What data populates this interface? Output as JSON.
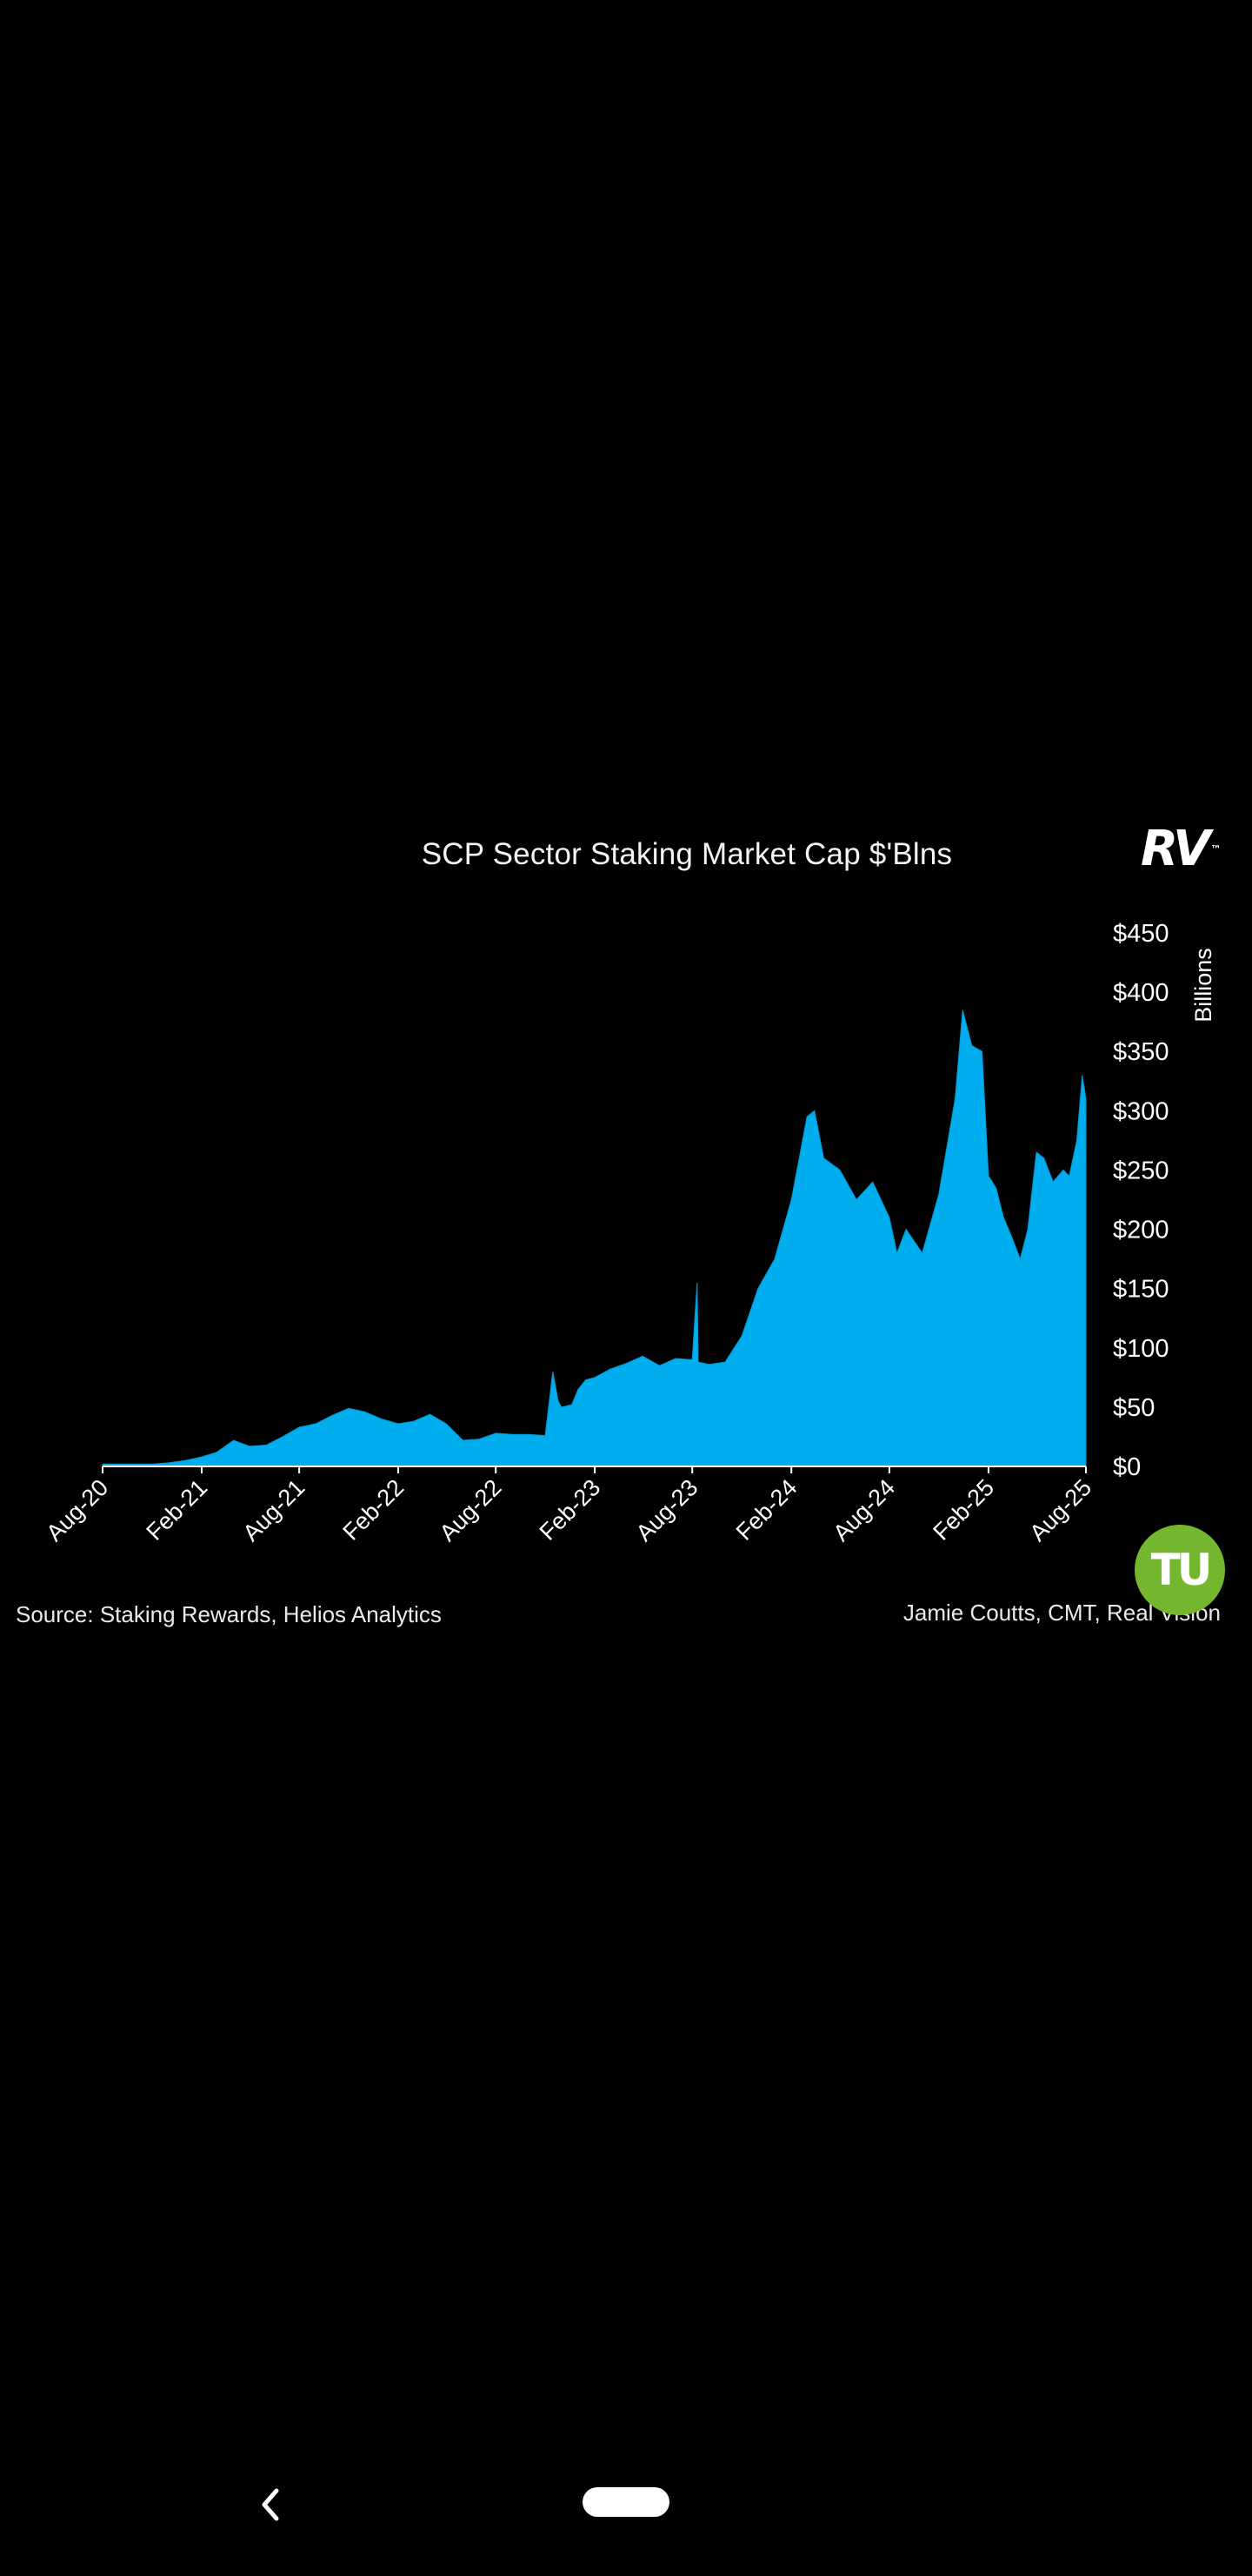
{
  "colors": {
    "background": "#000000",
    "area_fill": "#00aeef",
    "text": "#ffffff",
    "badge": "#74b72e"
  },
  "logos": {
    "rv": "RV",
    "rv_mark": "™",
    "tu": "TU"
  },
  "footer": {
    "source": "Source: Staking Rewards, Helios Analytics",
    "credit": "Jamie Coutts, CMT, Real Vision"
  },
  "nav": {
    "back_icon": "chevron-left-icon",
    "home_icon": "home-pill-icon"
  },
  "chart_data": {
    "type": "area",
    "title": "SCP Sector Staking Market Cap $'Blns",
    "xlabel": "",
    "ylabel": "Billions",
    "ylim": [
      0,
      450
    ],
    "y_axis_side": "right",
    "y_ticks": [
      0,
      50,
      100,
      150,
      200,
      250,
      300,
      350,
      400,
      450
    ],
    "y_tick_labels": [
      "$0",
      "$50",
      "$100",
      "$150",
      "$200",
      "$250",
      "$300",
      "$350",
      "$400",
      "$450"
    ],
    "x_ticks": [
      "2020-08-01",
      "2021-02-01",
      "2021-08-01",
      "2022-02-01",
      "2022-08-01",
      "2023-02-01",
      "2023-08-01",
      "2024-02-01",
      "2024-08-01",
      "2025-02-01",
      "2025-08-01"
    ],
    "x_tick_labels": [
      "Aug-20",
      "Feb-21",
      "Aug-21",
      "Feb-22",
      "Aug-22",
      "Feb-23",
      "Aug-23",
      "Feb-24",
      "Aug-24",
      "Feb-25",
      "Aug-25"
    ],
    "xlim": [
      "2020-08-01",
      "2025-08-01"
    ],
    "grid": false,
    "legend": "none",
    "series": [
      {
        "x": [
          "2020-08-01",
          "2020-09-15",
          "2020-11-01",
          "2020-12-01",
          "2021-01-01",
          "2021-02-01",
          "2021-03-01",
          "2021-04-01",
          "2021-05-01",
          "2021-06-01",
          "2021-07-01",
          "2021-08-01",
          "2021-09-01",
          "2021-10-01",
          "2021-11-01",
          "2021-12-01",
          "2022-01-01",
          "2022-02-01",
          "2022-03-01",
          "2022-04-01",
          "2022-05-01",
          "2022-06-01",
          "2022-07-01",
          "2022-08-01",
          "2022-09-01",
          "2022-10-01",
          "2022-11-01",
          "2022-11-15",
          "2022-11-25",
          "2022-12-01",
          "2022-12-20",
          "2023-01-01",
          "2023-01-15",
          "2023-02-01",
          "2023-03-01",
          "2023-04-01",
          "2023-05-01",
          "2023-06-01",
          "2023-07-01",
          "2023-08-01",
          "2023-08-10",
          "2023-08-12",
          "2023-09-01",
          "2023-10-01",
          "2023-11-01",
          "2023-12-01",
          "2024-01-01",
          "2024-02-01",
          "2024-03-01",
          "2024-03-15",
          "2024-04-01",
          "2024-05-01",
          "2024-06-01",
          "2024-07-01",
          "2024-08-01",
          "2024-08-15",
          "2024-09-01",
          "2024-10-01",
          "2024-11-01",
          "2024-12-01",
          "2024-12-15",
          "2025-01-01",
          "2025-01-20",
          "2025-02-01",
          "2025-02-15",
          "2025-03-01",
          "2025-03-15",
          "2025-04-01",
          "2025-04-15",
          "2025-05-01",
          "2025-05-15",
          "2025-06-01",
          "2025-06-20",
          "2025-07-01",
          "2025-07-15",
          "2025-07-25",
          "2025-08-01"
        ],
        "values": [
          2,
          2,
          2,
          3,
          5,
          8,
          12,
          22,
          17,
          18,
          25,
          33,
          36,
          43,
          49,
          46,
          40,
          36,
          38,
          44,
          36,
          22,
          23,
          28,
          27,
          27,
          26,
          80,
          55,
          50,
          52,
          65,
          73,
          75,
          82,
          87,
          93,
          85,
          91,
          90,
          155,
          88,
          86,
          88,
          110,
          150,
          175,
          225,
          295,
          300,
          260,
          250,
          225,
          240,
          210,
          180,
          200,
          180,
          230,
          310,
          385,
          355,
          350,
          245,
          235,
          210,
          195,
          175,
          200,
          265,
          260,
          240,
          250,
          245,
          275,
          330,
          310
        ]
      }
    ]
  }
}
